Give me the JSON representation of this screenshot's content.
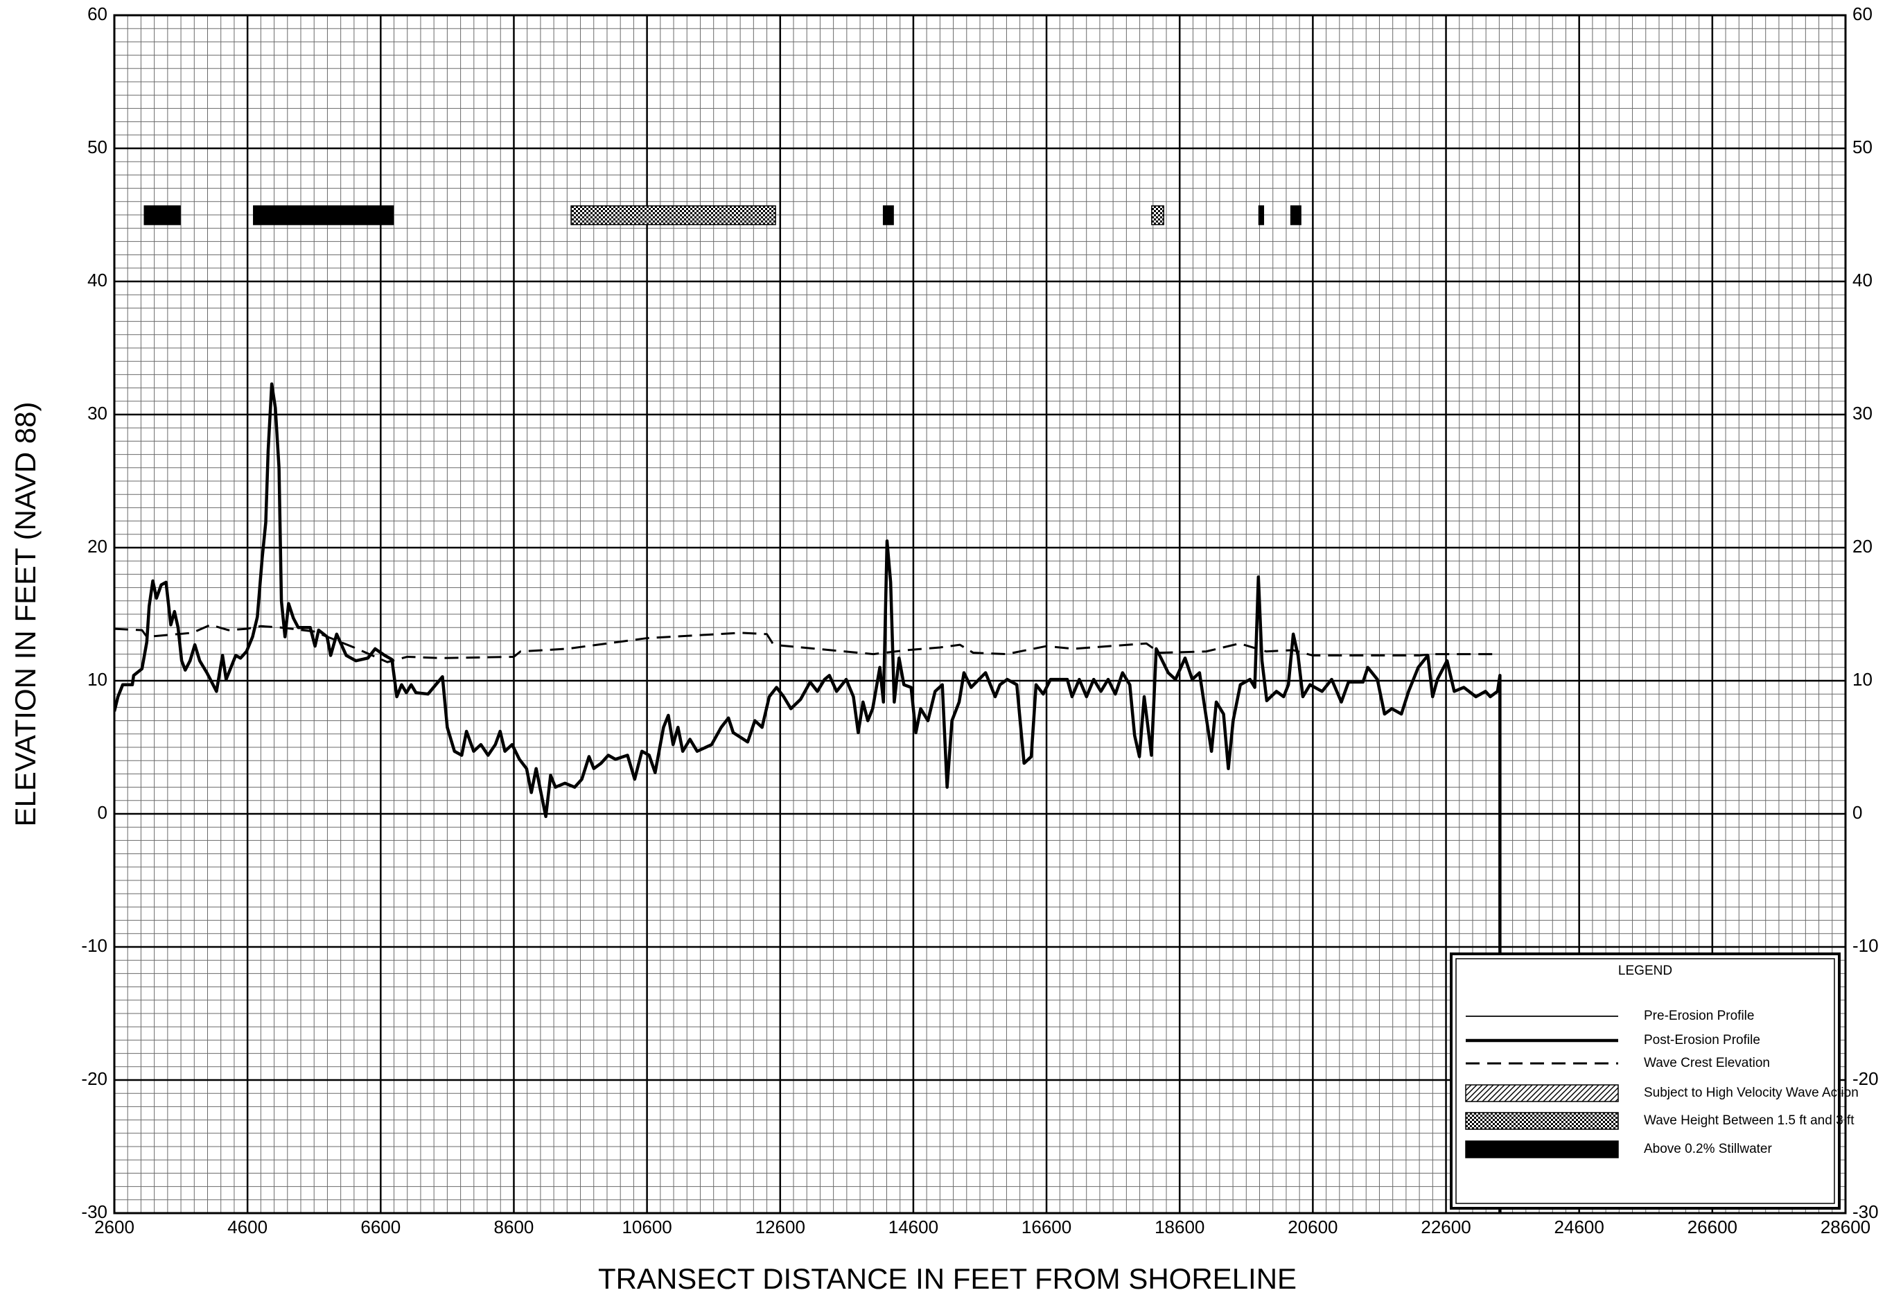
{
  "chart_data": {
    "type": "line",
    "x_label": "TRANSECT DISTANCE IN FEET FROM SHORELINE",
    "y_label": "ELEVATION IN FEET (NAVD 88)",
    "xlim": [
      2600,
      28600
    ],
    "xticks": [
      2600,
      4600,
      6600,
      8600,
      10600,
      12600,
      14600,
      16600,
      18600,
      20600,
      22600,
      24600,
      26600,
      28600
    ],
    "ylim": [
      -30,
      60
    ],
    "yticks": [
      -30,
      -20,
      -10,
      0,
      10,
      20,
      30,
      40,
      50,
      60
    ],
    "grid": true,
    "legend_title": "LEGEND",
    "legend": "lower right",
    "series": [
      {
        "name": "Pre-Erosion Profile",
        "color": "#000000",
        "line_style": "thin",
        "x": [],
        "values": []
      },
      {
        "name": "Post-Erosion Profile",
        "color": "#000000",
        "line_style": "thick",
        "x": [
          2600,
          2654,
          2726,
          2870,
          2890,
          3015,
          3087,
          3123,
          3178,
          3232,
          3304,
          3376,
          3448,
          3503,
          3557,
          3611,
          3665,
          3737,
          3809,
          3882,
          3990,
          4134,
          4225,
          4279,
          4351,
          4423,
          4495,
          4585,
          4676,
          4748,
          4820,
          4874,
          4910,
          4964,
          5018,
          5073,
          5109,
          5163,
          5217,
          5289,
          5362,
          5542,
          5614,
          5668,
          5795,
          5849,
          5939,
          6083,
          6228,
          6408,
          6517,
          6661,
          6769,
          6842,
          6914,
          6986,
          7058,
          7130,
          7311,
          7528,
          7600,
          7708,
          7817,
          7889,
          7997,
          8105,
          8213,
          8322,
          8394,
          8466,
          8574,
          8683,
          8791,
          8863,
          8935,
          9007,
          9080,
          9152,
          9224,
          9368,
          9513,
          9621,
          9729,
          9801,
          9910,
          10018,
          10126,
          10307,
          10415,
          10523,
          10632,
          10722,
          10848,
          10920,
          10992,
          11065,
          11137,
          11245,
          11353,
          11570,
          11714,
          11823,
          11895,
          12112,
          12220,
          12328,
          12436,
          12545,
          12653,
          12761,
          12906,
          13050,
          13159,
          13267,
          13339,
          13447,
          13592,
          13700,
          13772,
          13844,
          13916,
          13989,
          14097,
          14151,
          14205,
          14259,
          14313,
          14386,
          14458,
          14566,
          14638,
          14710,
          14819,
          14927,
          15035,
          15107,
          15180,
          15288,
          15360,
          15468,
          15685,
          15829,
          15901,
          16010,
          16154,
          16263,
          16371,
          16443,
          16551,
          16660,
          16912,
          16984,
          17092,
          17201,
          17309,
          17417,
          17526,
          17634,
          17742,
          17851,
          17923,
          17995,
          18067,
          18176,
          18248,
          18320,
          18428,
          18537,
          18681,
          18789,
          18898,
          19006,
          19078,
          19150,
          19259,
          19331,
          19403,
          19511,
          19656,
          19728,
          19782,
          19836,
          19908,
          20053,
          20161,
          20233,
          20306,
          20378,
          20450,
          20558,
          20739,
          20883,
          21028,
          21136,
          21353,
          21425,
          21569,
          21677,
          21786,
          21930,
          22038,
          22183,
          22327,
          22399,
          22471,
          22616,
          22724,
          22868,
          23049,
          23193,
          23265,
          23374,
          23410,
          23410
        ],
        "values": [
          7.7,
          8.8,
          9.7,
          9.7,
          10.4,
          10.9,
          12.9,
          15.6,
          17.5,
          16.2,
          17.2,
          17.4,
          14.2,
          15.2,
          14.0,
          11.5,
          10.8,
          11.5,
          12.7,
          11.5,
          10.6,
          9.2,
          11.9,
          10.1,
          11.0,
          11.9,
          11.7,
          12.2,
          13.3,
          14.8,
          19.2,
          21.9,
          27.3,
          32.3,
          30.5,
          26.0,
          16.0,
          13.3,
          15.8,
          14.7,
          14.0,
          14.0,
          12.6,
          13.8,
          13.3,
          11.9,
          13.5,
          11.9,
          11.5,
          11.7,
          12.4,
          11.9,
          11.6,
          8.8,
          9.7,
          9.1,
          9.7,
          9.1,
          9.0,
          10.3,
          6.5,
          4.7,
          4.4,
          6.2,
          4.7,
          5.2,
          4.4,
          5.2,
          6.2,
          4.7,
          5.2,
          4.1,
          3.4,
          1.6,
          3.4,
          1.6,
          -0.2,
          2.9,
          2.0,
          2.3,
          2.0,
          2.6,
          4.3,
          3.4,
          3.8,
          4.4,
          4.1,
          4.4,
          2.6,
          4.7,
          4.4,
          3.1,
          6.5,
          7.4,
          5.2,
          6.5,
          4.7,
          5.6,
          4.7,
          5.2,
          6.5,
          7.2,
          6.1,
          5.4,
          7.0,
          6.5,
          8.8,
          9.5,
          8.8,
          7.9,
          8.6,
          9.9,
          9.2,
          10.1,
          10.4,
          9.2,
          10.1,
          8.8,
          6.1,
          8.4,
          7.0,
          7.9,
          11.0,
          8.4,
          20.5,
          17.4,
          8.4,
          11.7,
          9.7,
          9.5,
          6.1,
          7.9,
          7.0,
          9.2,
          9.7,
          2.0,
          7.0,
          8.4,
          10.6,
          9.5,
          10.6,
          8.8,
          9.7,
          10.1,
          9.7,
          3.8,
          4.3,
          9.7,
          9.0,
          10.1,
          10.1,
          8.8,
          10.1,
          8.8,
          10.1,
          9.2,
          10.1,
          9.0,
          10.6,
          9.7,
          5.9,
          4.3,
          8.8,
          4.4,
          12.4,
          11.7,
          10.6,
          10.1,
          11.7,
          10.1,
          10.6,
          7.0,
          4.7,
          8.4,
          7.5,
          3.4,
          7.0,
          9.7,
          10.1,
          9.5,
          17.8,
          11.5,
          8.5,
          9.2,
          8.8,
          9.7,
          13.5,
          11.9,
          8.8,
          9.7,
          9.2,
          10.1,
          8.4,
          9.9,
          9.9,
          11.0,
          10.1,
          7.5,
          7.9,
          7.5,
          9.2,
          11.0,
          11.9,
          8.8,
          10.1,
          11.5,
          9.2,
          9.5,
          8.8,
          9.2,
          8.8,
          9.2,
          10.4,
          -30
        ]
      },
      {
        "name": "Wave Crest Elevation",
        "color": "#000000",
        "line_style": "dashed",
        "x": [
          2600,
          3015,
          3087,
          3773,
          4044,
          4315,
          4585,
          4800,
          5100,
          5600,
          6200,
          6700,
          7000,
          7500,
          8600,
          8700,
          9400,
          10600,
          12000,
          12400,
          12500,
          14000,
          14500,
          15000,
          15300,
          15500,
          16000,
          16600,
          17000,
          18100,
          18300,
          19000,
          19500,
          19900,
          20300,
          20600,
          22200,
          22400,
          23400
        ],
        "values": [
          13.9,
          13.8,
          13.3,
          13.6,
          14.2,
          13.8,
          13.9,
          14.1,
          14.0,
          13.7,
          12.5,
          11.4,
          11.8,
          11.7,
          11.8,
          12.2,
          12.4,
          13.2,
          13.6,
          13.5,
          12.7,
          12.0,
          12.3,
          12.5,
          12.7,
          12.1,
          12.0,
          12.6,
          12.4,
          12.8,
          12.1,
          12.2,
          12.8,
          12.2,
          12.3,
          11.9,
          11.9,
          12.0,
          12.0
        ]
      }
    ],
    "zones": [
      {
        "name": "Subject to High Velocity Wave Action",
        "pattern": "hatch",
        "ranges": []
      },
      {
        "name": "Wave Height Between 1.5 ft and 3 ft",
        "pattern": "crosshatch",
        "ranges": [
          [
            9460,
            12530
          ],
          [
            18180,
            18360
          ]
        ]
      },
      {
        "name": "Above 0.2% Stillwater",
        "pattern": "solid",
        "ranges": [
          [
            3050,
            3590
          ],
          [
            4690,
            6790
          ],
          [
            14150,
            14300
          ],
          [
            19790,
            19860
          ],
          [
            20270,
            20420
          ]
        ]
      }
    ]
  }
}
